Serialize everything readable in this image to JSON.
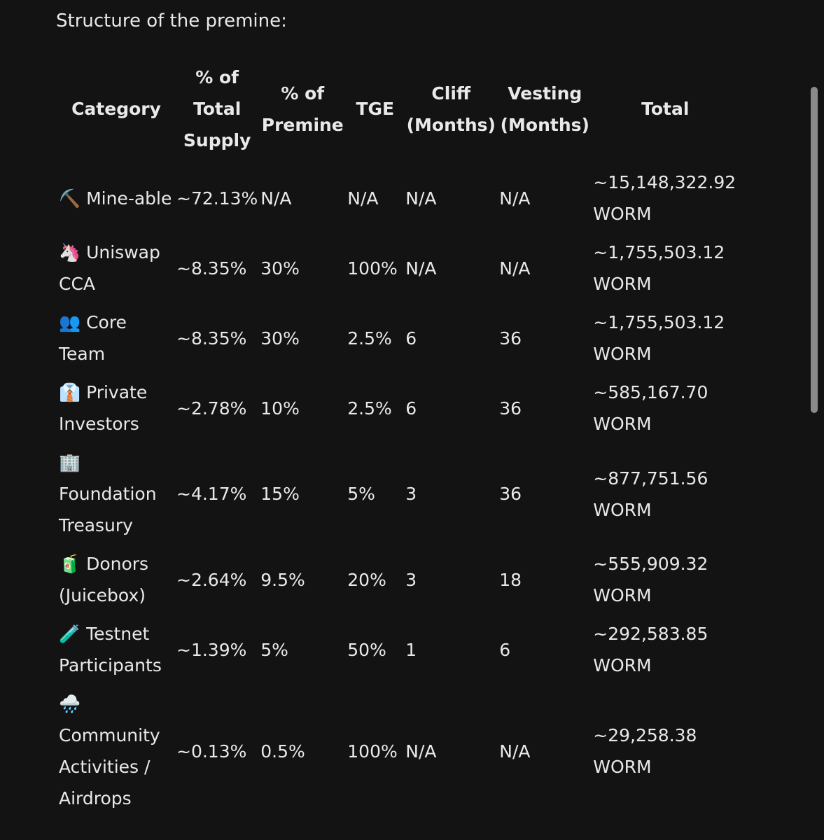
{
  "header": {
    "title": "Structure of the premine:"
  },
  "table": {
    "columns": [
      "Category",
      "% of Total Supply",
      "% of Premine",
      "TGE",
      "Cliff (Months)",
      "Vesting (Months)",
      "Total"
    ],
    "rows": [
      [
        "⛏️ Mine-able",
        "~72.13%",
        "N/A",
        "N/A",
        "N/A",
        "N/A",
        "~15,148,322.92 WORM"
      ],
      [
        "🦄 Uniswap CCA",
        "~8.35%",
        "30%",
        "100%",
        "N/A",
        "N/A",
        "~1,755,503.12 WORM"
      ],
      [
        "👥 Core Team",
        "~8.35%",
        "30%",
        "2.5%",
        "6",
        "36",
        "~1,755,503.12 WORM"
      ],
      [
        "👔 Private Investors",
        "~2.78%",
        "10%",
        "2.5%",
        "6",
        "36",
        "~585,167.70 WORM"
      ],
      [
        "🏢 Foundation Treasury",
        "~4.17%",
        "15%",
        "5%",
        "3",
        "36",
        "~877,751.56 WORM"
      ],
      [
        "🧃 Donors (Juicebox)",
        "~2.64%",
        "9.5%",
        "20%",
        "3",
        "18",
        "~555,909.32 WORM"
      ],
      [
        "🧪 Testnet Participants",
        "~1.39%",
        "5%",
        "50%",
        "1",
        "6",
        "~292,583.85 WORM"
      ],
      [
        "🌧️ Community Activities / Airdrops",
        "~0.13%",
        "0.5%",
        "100%",
        "N/A",
        "N/A",
        "~29,258.38 WORM"
      ]
    ]
  }
}
